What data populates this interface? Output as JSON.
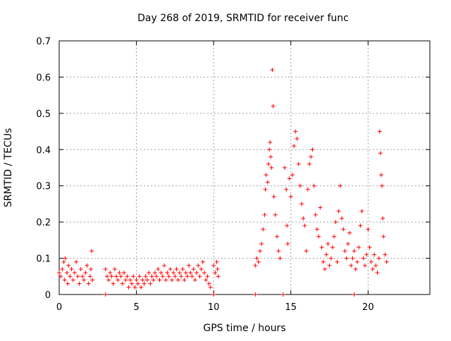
{
  "chart_data": {
    "type": "scatter",
    "title": "Day 268 of 2019, SRMTID for receiver func",
    "xlabel": "GPS time / hours",
    "ylabel": "SRMTID / TECUs",
    "xlim": [
      0,
      24
    ],
    "ylim": [
      0,
      0.7
    ],
    "xticks": [
      0,
      5,
      10,
      15,
      20
    ],
    "yticks": [
      0,
      0.1,
      0.2,
      0.3,
      0.4,
      0.5,
      0.6,
      0.7
    ],
    "grid": true,
    "marker": "+",
    "color": "#ff0000",
    "series": [
      {
        "name": "SRMTID",
        "points": [
          [
            0.0,
            0.06
          ],
          [
            0.1,
            0.05
          ],
          [
            0.2,
            0.07
          ],
          [
            0.3,
            0.09
          ],
          [
            0.35,
            0.04
          ],
          [
            0.4,
            0.1
          ],
          [
            0.5,
            0.06
          ],
          [
            0.55,
            0.03
          ],
          [
            0.6,
            0.08
          ],
          [
            0.7,
            0.05
          ],
          [
            0.8,
            0.07
          ],
          [
            0.9,
            0.04
          ],
          [
            1.0,
            0.06
          ],
          [
            1.1,
            0.09
          ],
          [
            1.2,
            0.05
          ],
          [
            1.3,
            0.03
          ],
          [
            1.4,
            0.07
          ],
          [
            1.5,
            0.05
          ],
          [
            1.6,
            0.04
          ],
          [
            1.7,
            0.06
          ],
          [
            1.8,
            0.08
          ],
          [
            1.9,
            0.03
          ],
          [
            2.0,
            0.05
          ],
          [
            2.05,
            0.07
          ],
          [
            2.1,
            0.12
          ],
          [
            2.15,
            0.04
          ],
          [
            3.0,
            0.07
          ],
          [
            3.1,
            0.05
          ],
          [
            3.2,
            0.04
          ],
          [
            3.3,
            0.06
          ],
          [
            3.4,
            0.05
          ],
          [
            3.5,
            0.03
          ],
          [
            3.6,
            0.07
          ],
          [
            3.7,
            0.05
          ],
          [
            3.8,
            0.04
          ],
          [
            3.9,
            0.06
          ],
          [
            4.0,
            0.05
          ],
          [
            4.1,
            0.03
          ],
          [
            4.2,
            0.06
          ],
          [
            4.3,
            0.04
          ],
          [
            4.4,
            0.05
          ],
          [
            4.5,
            0.02
          ],
          [
            4.6,
            0.04
          ],
          [
            4.7,
            0.03
          ],
          [
            4.8,
            0.05
          ],
          [
            4.9,
            0.02
          ],
          [
            5.0,
            0.04
          ],
          [
            5.1,
            0.03
          ],
          [
            5.2,
            0.05
          ],
          [
            5.3,
            0.02
          ],
          [
            5.4,
            0.04
          ],
          [
            5.5,
            0.03
          ],
          [
            5.6,
            0.05
          ],
          [
            5.7,
            0.04
          ],
          [
            5.8,
            0.06
          ],
          [
            5.9,
            0.03
          ],
          [
            6.0,
            0.05
          ],
          [
            6.1,
            0.04
          ],
          [
            6.2,
            0.06
          ],
          [
            6.3,
            0.05
          ],
          [
            6.4,
            0.07
          ],
          [
            6.5,
            0.04
          ],
          [
            6.6,
            0.06
          ],
          [
            6.7,
            0.05
          ],
          [
            6.8,
            0.08
          ],
          [
            6.9,
            0.04
          ],
          [
            7.0,
            0.06
          ],
          [
            7.1,
            0.05
          ],
          [
            7.2,
            0.07
          ],
          [
            7.3,
            0.04
          ],
          [
            7.4,
            0.06
          ],
          [
            7.5,
            0.05
          ],
          [
            7.6,
            0.07
          ],
          [
            7.7,
            0.04
          ],
          [
            7.8,
            0.06
          ],
          [
            7.9,
            0.05
          ],
          [
            8.0,
            0.07
          ],
          [
            8.1,
            0.04
          ],
          [
            8.2,
            0.06
          ],
          [
            8.3,
            0.05
          ],
          [
            8.4,
            0.08
          ],
          [
            8.5,
            0.06
          ],
          [
            8.6,
            0.05
          ],
          [
            8.7,
            0.07
          ],
          [
            8.8,
            0.04
          ],
          [
            8.9,
            0.06
          ],
          [
            9.0,
            0.08
          ],
          [
            9.1,
            0.05
          ],
          [
            9.2,
            0.07
          ],
          [
            9.3,
            0.09
          ],
          [
            9.4,
            0.06
          ],
          [
            9.5,
            0.04
          ],
          [
            9.6,
            0.05
          ],
          [
            9.7,
            0.03
          ],
          [
            9.8,
            0.02
          ],
          [
            10.0,
            0.08
          ],
          [
            10.1,
            0.06
          ],
          [
            10.2,
            0.09
          ],
          [
            10.25,
            0.07
          ],
          [
            10.3,
            0.05
          ],
          [
            10.0,
            0.0
          ],
          [
            12.7,
            0.0
          ],
          [
            14.5,
            0.0
          ],
          [
            19.1,
            0.0
          ],
          [
            3.0,
            0.0
          ],
          [
            12.7,
            0.08
          ],
          [
            12.8,
            0.1
          ],
          [
            12.9,
            0.09
          ],
          [
            13.0,
            0.12
          ],
          [
            13.1,
            0.14
          ],
          [
            13.2,
            0.18
          ],
          [
            13.3,
            0.22
          ],
          [
            13.35,
            0.29
          ],
          [
            13.4,
            0.33
          ],
          [
            13.5,
            0.31
          ],
          [
            13.55,
            0.36
          ],
          [
            13.6,
            0.4
          ],
          [
            13.65,
            0.42
          ],
          [
            13.7,
            0.38
          ],
          [
            13.75,
            0.35
          ],
          [
            13.8,
            0.62
          ],
          [
            13.85,
            0.52
          ],
          [
            13.9,
            0.27
          ],
          [
            14.0,
            0.22
          ],
          [
            14.1,
            0.16
          ],
          [
            14.2,
            0.12
          ],
          [
            14.3,
            0.1
          ],
          [
            14.6,
            0.35
          ],
          [
            14.7,
            0.29
          ],
          [
            14.75,
            0.19
          ],
          [
            14.8,
            0.14
          ],
          [
            14.9,
            0.32
          ],
          [
            15.0,
            0.27
          ],
          [
            15.1,
            0.33
          ],
          [
            15.2,
            0.41
          ],
          [
            15.3,
            0.45
          ],
          [
            15.4,
            0.43
          ],
          [
            15.5,
            0.36
          ],
          [
            15.6,
            0.3
          ],
          [
            15.7,
            0.25
          ],
          [
            15.8,
            0.21
          ],
          [
            15.9,
            0.19
          ],
          [
            16.0,
            0.12
          ],
          [
            16.1,
            0.29
          ],
          [
            16.2,
            0.36
          ],
          [
            16.3,
            0.38
          ],
          [
            16.4,
            0.4
          ],
          [
            16.5,
            0.3
          ],
          [
            16.6,
            0.22
          ],
          [
            16.7,
            0.18
          ],
          [
            16.8,
            0.16
          ],
          [
            16.9,
            0.24
          ],
          [
            17.0,
            0.13
          ],
          [
            17.1,
            0.09
          ],
          [
            17.2,
            0.07
          ],
          [
            17.3,
            0.11
          ],
          [
            17.4,
            0.14
          ],
          [
            17.5,
            0.08
          ],
          [
            17.6,
            0.1
          ],
          [
            17.7,
            0.13
          ],
          [
            17.8,
            0.16
          ],
          [
            17.9,
            0.2
          ],
          [
            18.0,
            0.09
          ],
          [
            18.1,
            0.23
          ],
          [
            18.2,
            0.3
          ],
          [
            18.3,
            0.21
          ],
          [
            18.4,
            0.18
          ],
          [
            18.5,
            0.12
          ],
          [
            18.6,
            0.1
          ],
          [
            18.7,
            0.14
          ],
          [
            18.8,
            0.17
          ],
          [
            18.9,
            0.08
          ],
          [
            19.0,
            0.1
          ],
          [
            19.1,
            0.12
          ],
          [
            19.2,
            0.07
          ],
          [
            19.3,
            0.09
          ],
          [
            19.4,
            0.13
          ],
          [
            19.5,
            0.19
          ],
          [
            19.6,
            0.23
          ],
          [
            19.7,
            0.1
          ],
          [
            19.8,
            0.08
          ],
          [
            19.9,
            0.11
          ],
          [
            20.0,
            0.18
          ],
          [
            20.1,
            0.13
          ],
          [
            20.2,
            0.09
          ],
          [
            20.3,
            0.07
          ],
          [
            20.4,
            0.11
          ],
          [
            20.5,
            0.08
          ],
          [
            20.6,
            0.06
          ],
          [
            20.7,
            0.1
          ],
          [
            20.75,
            0.45
          ],
          [
            20.8,
            0.39
          ],
          [
            20.85,
            0.33
          ],
          [
            20.9,
            0.3
          ],
          [
            20.95,
            0.21
          ],
          [
            21.0,
            0.16
          ],
          [
            21.1,
            0.11
          ],
          [
            21.2,
            0.09
          ]
        ]
      }
    ]
  }
}
